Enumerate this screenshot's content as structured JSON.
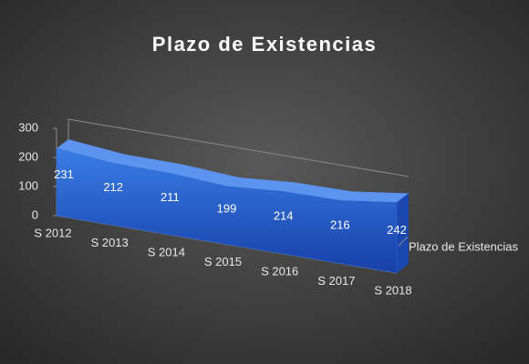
{
  "chart_data": {
    "type": "area",
    "title": "Plazo de Existencias",
    "categories": [
      "S 2012",
      "S 2013",
      "S 2014",
      "S 2015",
      "S 2016",
      "S 2017",
      "S 2018"
    ],
    "series": [
      {
        "name": "Plazo de Existencias",
        "color": "#2a62d0",
        "values": [
          231,
          212,
          211,
          199,
          214,
          216,
          242
        ]
      }
    ],
    "ylim": [
      0,
      300
    ],
    "yticks": [
      0,
      100,
      200,
      300
    ]
  }
}
